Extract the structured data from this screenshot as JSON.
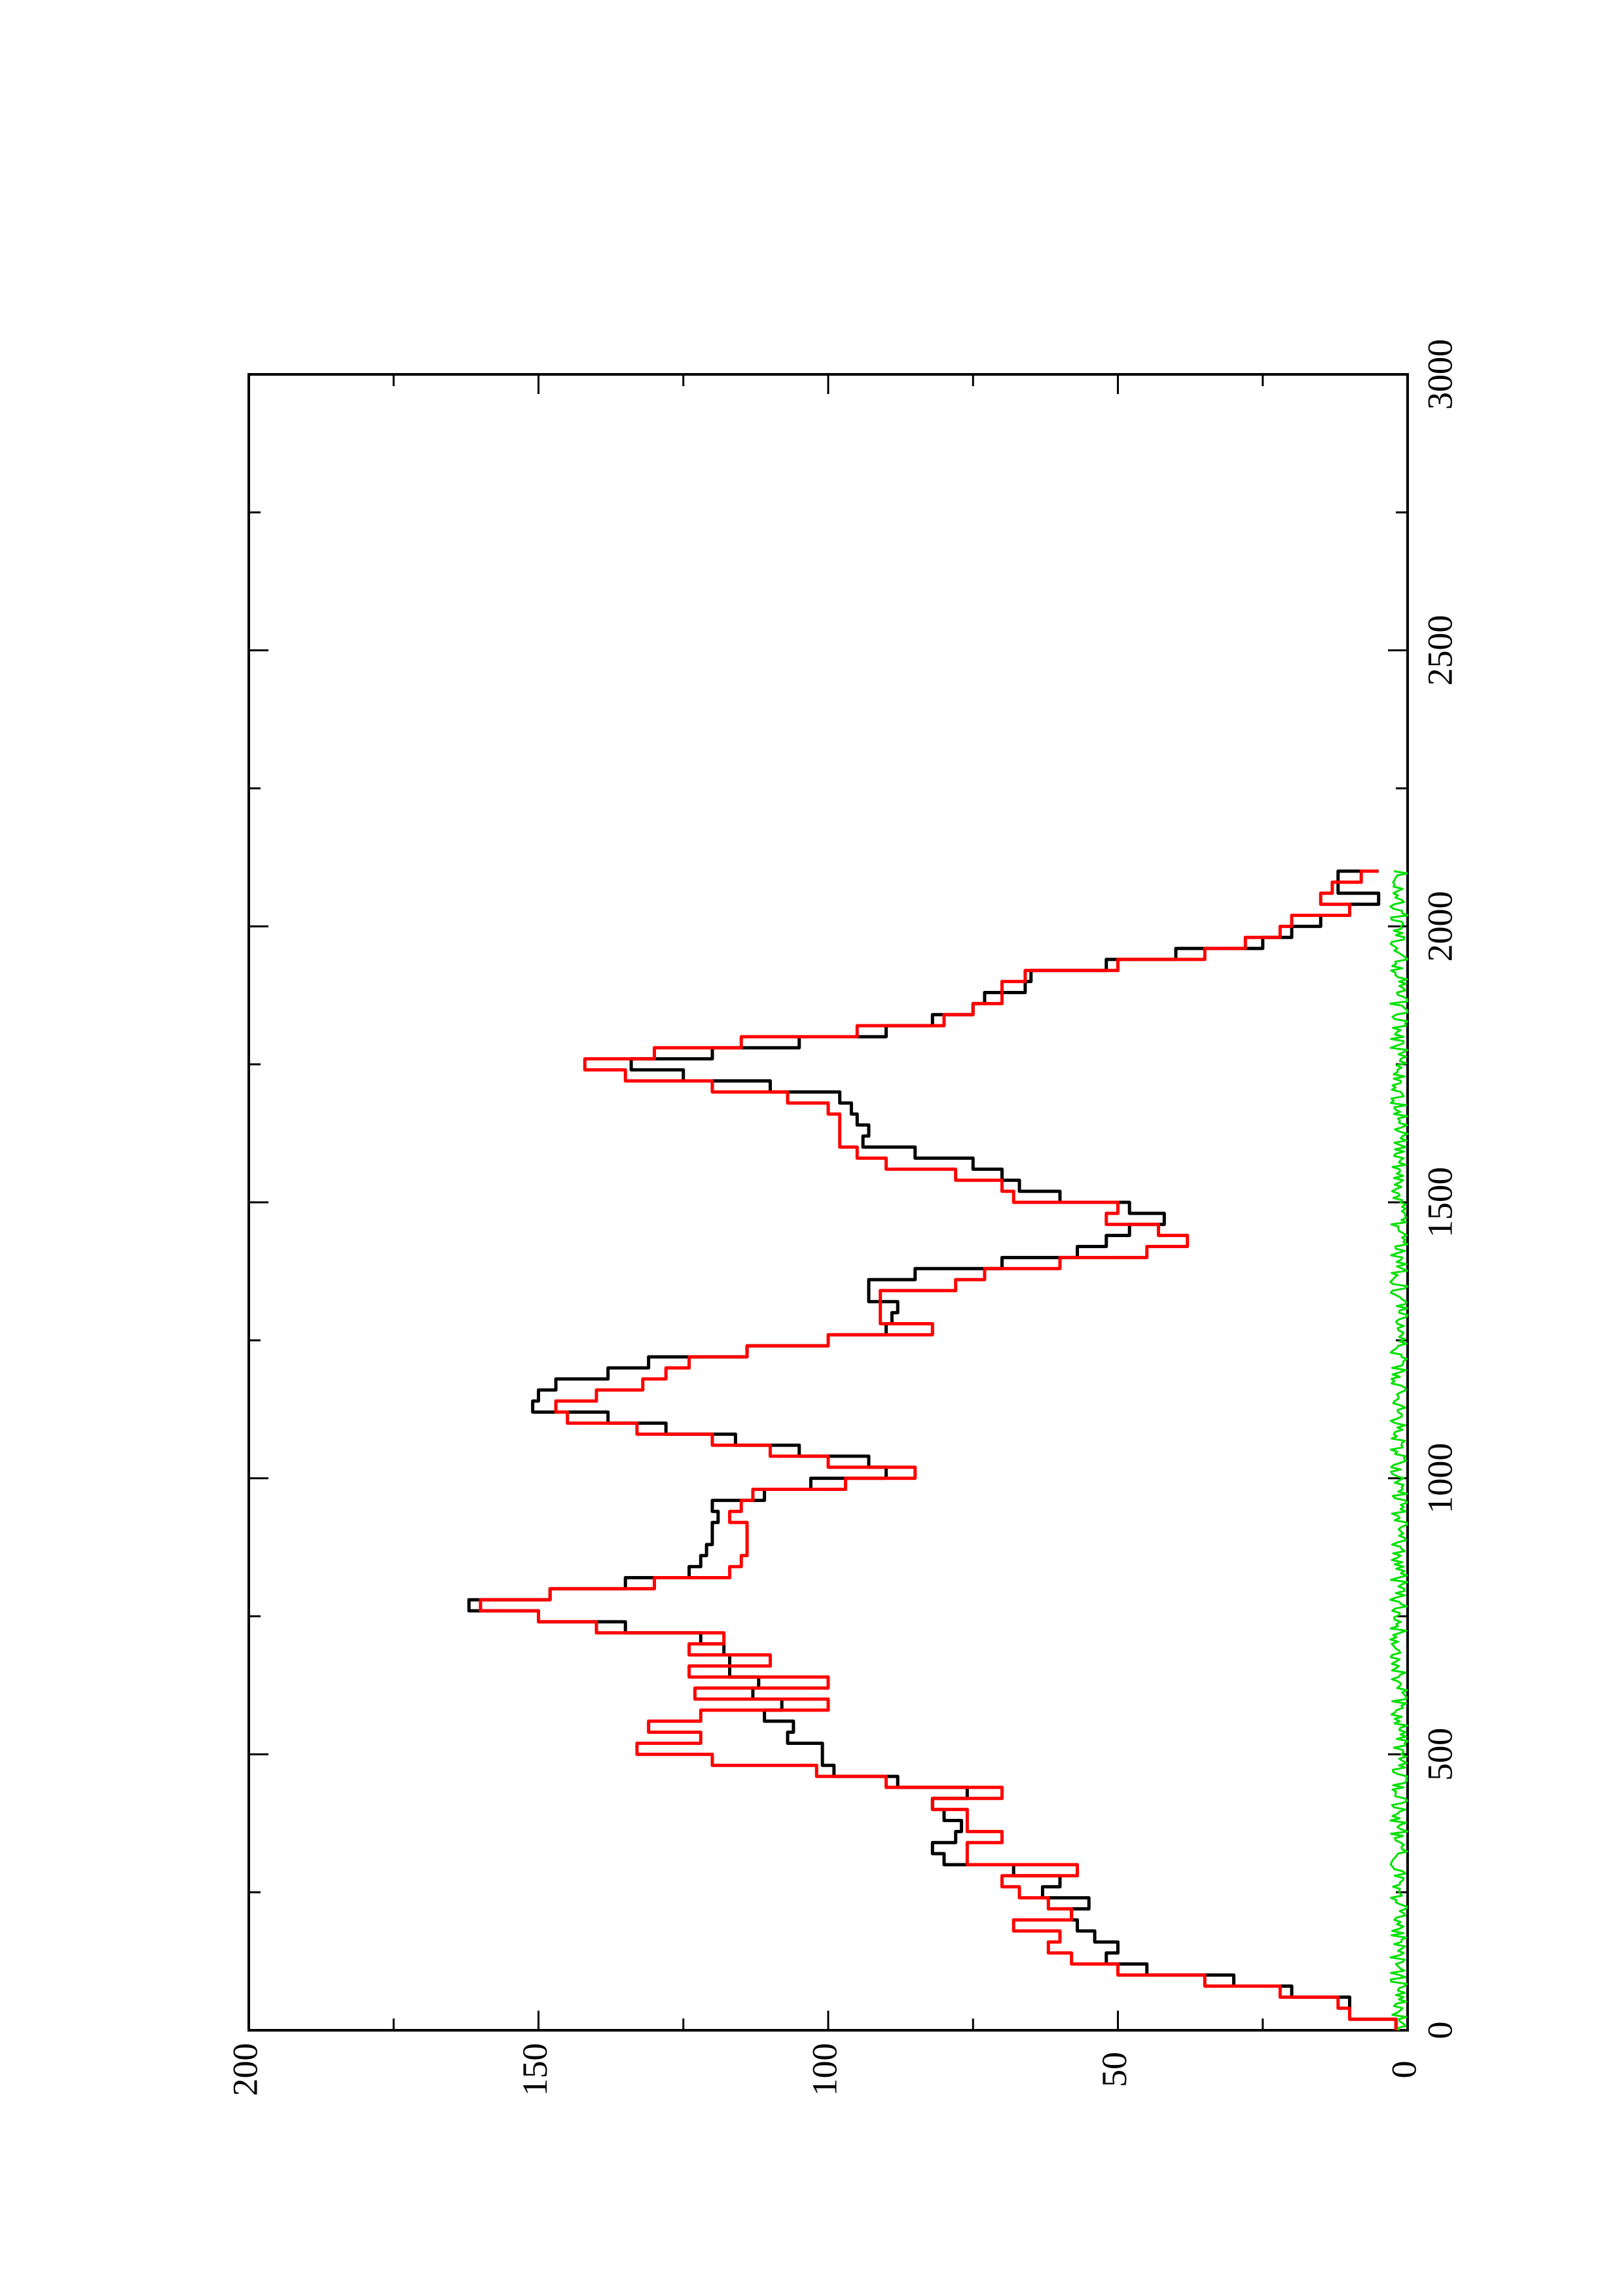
{
  "chart_data": {
    "type": "line",
    "title": "",
    "xlabel": "",
    "ylabel": "",
    "orientation": "rotated 90 degrees counter-clockwise (page is landscape plot rendered in portrait)",
    "xlim": [
      0,
      3000
    ],
    "ylim": [
      0,
      200
    ],
    "x_ticks": [
      "0",
      "500",
      "1000",
      "1500",
      "2000",
      "2500",
      "3000"
    ],
    "y_ticks": [
      "0",
      "50",
      "100",
      "150",
      "200"
    ],
    "grid": false,
    "legend": "none",
    "series": [
      {
        "color": "#000000",
        "x": [
          0,
          20,
          40,
          60,
          80,
          100,
          120,
          140,
          160,
          180,
          200,
          220,
          240,
          260,
          280,
          300,
          320,
          340,
          360,
          380,
          400,
          420,
          440,
          460,
          480,
          500,
          520,
          540,
          560,
          580,
          600,
          620,
          640,
          660,
          680,
          700,
          720,
          740,
          760,
          780,
          800,
          820,
          840,
          860,
          880,
          900,
          920,
          940,
          960,
          980,
          1000,
          1020,
          1040,
          1060,
          1080,
          1100,
          1120,
          1140,
          1160,
          1180,
          1200,
          1220,
          1240,
          1260,
          1280,
          1300,
          1320,
          1340,
          1360,
          1380,
          1400,
          1420,
          1440,
          1460,
          1480,
          1500,
          1520,
          1540,
          1560,
          1580,
          1600,
          1620,
          1640,
          1660,
          1680,
          1700,
          1720,
          1740,
          1760,
          1780,
          1800,
          1820,
          1840,
          1860,
          1880,
          1900,
          1920,
          1940,
          1960,
          1980,
          2000,
          2020,
          2040,
          2060,
          2080,
          2100
        ],
        "y": [
          2,
          10,
          10,
          20,
          30,
          45,
          52,
          50,
          54,
          57,
          58,
          55,
          63,
          60,
          68,
          80,
          82,
          78,
          77,
          80,
          82,
          76,
          88,
          99,
          101,
          101,
          107,
          106,
          111,
          108,
          113,
          112,
          117,
          117,
          118,
          122,
          135,
          150,
          162,
          148,
          135,
          124,
          122,
          121,
          120,
          120,
          119,
          120,
          111,
          103,
          90,
          93,
          105,
          116,
          128,
          138,
          151,
          150,
          147,
          138,
          131,
          114,
          100,
          90,
          89,
          88,
          93,
          93,
          85,
          70,
          57,
          52,
          48,
          42,
          48,
          60,
          67,
          70,
          75,
          85,
          94,
          93,
          95,
          96,
          98,
          110,
          125,
          134,
          120,
          105,
          90,
          82,
          75,
          73,
          66,
          65,
          52,
          40,
          25,
          20,
          15,
          10,
          5,
          12,
          12,
          5
        ]
      },
      {
        "color": "#ff0000",
        "x": [
          0,
          20,
          40,
          60,
          80,
          100,
          120,
          140,
          160,
          180,
          200,
          220,
          240,
          260,
          280,
          300,
          320,
          340,
          360,
          380,
          400,
          420,
          440,
          460,
          480,
          500,
          520,
          540,
          560,
          580,
          600,
          620,
          640,
          660,
          680,
          700,
          720,
          740,
          760,
          780,
          800,
          820,
          840,
          860,
          880,
          900,
          920,
          940,
          960,
          980,
          1000,
          1020,
          1040,
          1060,
          1080,
          1100,
          1120,
          1140,
          1160,
          1180,
          1200,
          1220,
          1240,
          1260,
          1280,
          1300,
          1320,
          1340,
          1360,
          1380,
          1400,
          1420,
          1440,
          1460,
          1480,
          1500,
          1520,
          1540,
          1560,
          1580,
          1600,
          1620,
          1640,
          1660,
          1680,
          1700,
          1720,
          1740,
          1760,
          1780,
          1800,
          1820,
          1840,
          1860,
          1880,
          1900,
          1920,
          1940,
          1960,
          1980,
          2000,
          2020,
          2040,
          2060,
          2080,
          2100
        ],
        "y": [
          2,
          10,
          12,
          22,
          35,
          50,
          58,
          62,
          60,
          68,
          58,
          62,
          67,
          70,
          57,
          76,
          76,
          70,
          76,
          76,
          82,
          70,
          90,
          102,
          120,
          133,
          122,
          131,
          122,
          100,
          123,
          100,
          124,
          110,
          124,
          118,
          140,
          150,
          160,
          148,
          130,
          117,
          115,
          114,
          114,
          114,
          117,
          115,
          113,
          97,
          85,
          100,
          110,
          120,
          133,
          145,
          147,
          140,
          132,
          128,
          124,
          114,
          100,
          82,
          91,
          91,
          91,
          78,
          73,
          60,
          45,
          38,
          43,
          52,
          50,
          68,
          70,
          78,
          90,
          95,
          98,
          98,
          98,
          100,
          107,
          120,
          135,
          142,
          130,
          115,
          95,
          80,
          75,
          70,
          70,
          66,
          50,
          35,
          28,
          22,
          20,
          10,
          15,
          13,
          8,
          5
        ]
      },
      {
        "color": "#00e000",
        "x": [
          0,
          2100
        ],
        "y": [
          0,
          0
        ],
        "description": "noisy baseline near zero (amplitude ~0-3) spanning x from 0 to 2100"
      }
    ]
  }
}
